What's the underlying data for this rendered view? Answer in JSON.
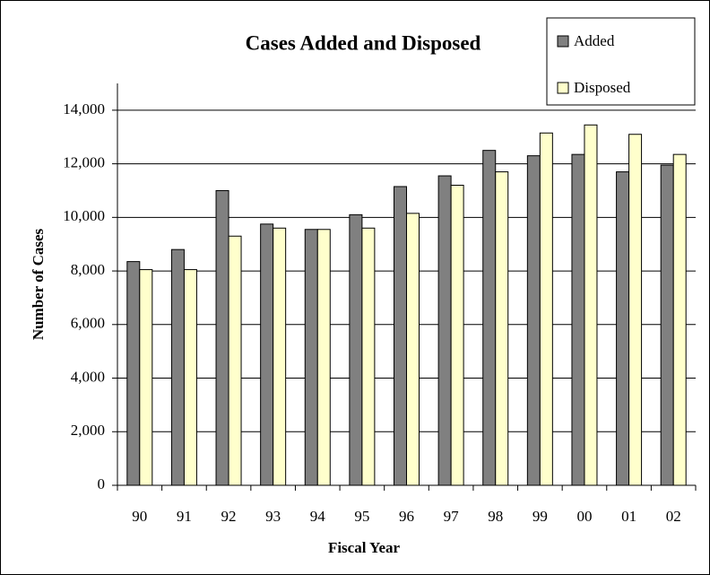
{
  "chart_data": {
    "type": "bar",
    "title": "Cases Added and Disposed",
    "xlabel": "Fiscal Year",
    "ylabel": "Number of Cases",
    "categories": [
      "90",
      "91",
      "92",
      "93",
      "94",
      "95",
      "96",
      "97",
      "98",
      "99",
      "00",
      "01",
      "02"
    ],
    "series": [
      {
        "name": "Added",
        "color": "#808080",
        "values": [
          8350,
          8800,
          11000,
          9750,
          9550,
          10100,
          11150,
          11550,
          12500,
          12300,
          12350,
          11700,
          11950
        ]
      },
      {
        "name": "Disposed",
        "color": "#ffffcc",
        "values": [
          8050,
          8050,
          9300,
          9600,
          9550,
          9600,
          10150,
          11200,
          11700,
          13150,
          13450,
          13100,
          12350
        ]
      }
    ],
    "ylim": [
      0,
      15000
    ],
    "yticks": [
      0,
      {
        "value": 2000,
        "label": "2,000"
      },
      {
        "value": 4000,
        "label": "4,000"
      },
      {
        "value": 6000,
        "label": "6,000"
      },
      {
        "value": 8000,
        "label": "8,000"
      },
      {
        "value": 10000,
        "label": "10,000"
      },
      {
        "value": 12000,
        "label": "12,000"
      },
      {
        "value": 14000,
        "label": "14,000"
      }
    ],
    "grid": true,
    "legend": "top-right"
  }
}
